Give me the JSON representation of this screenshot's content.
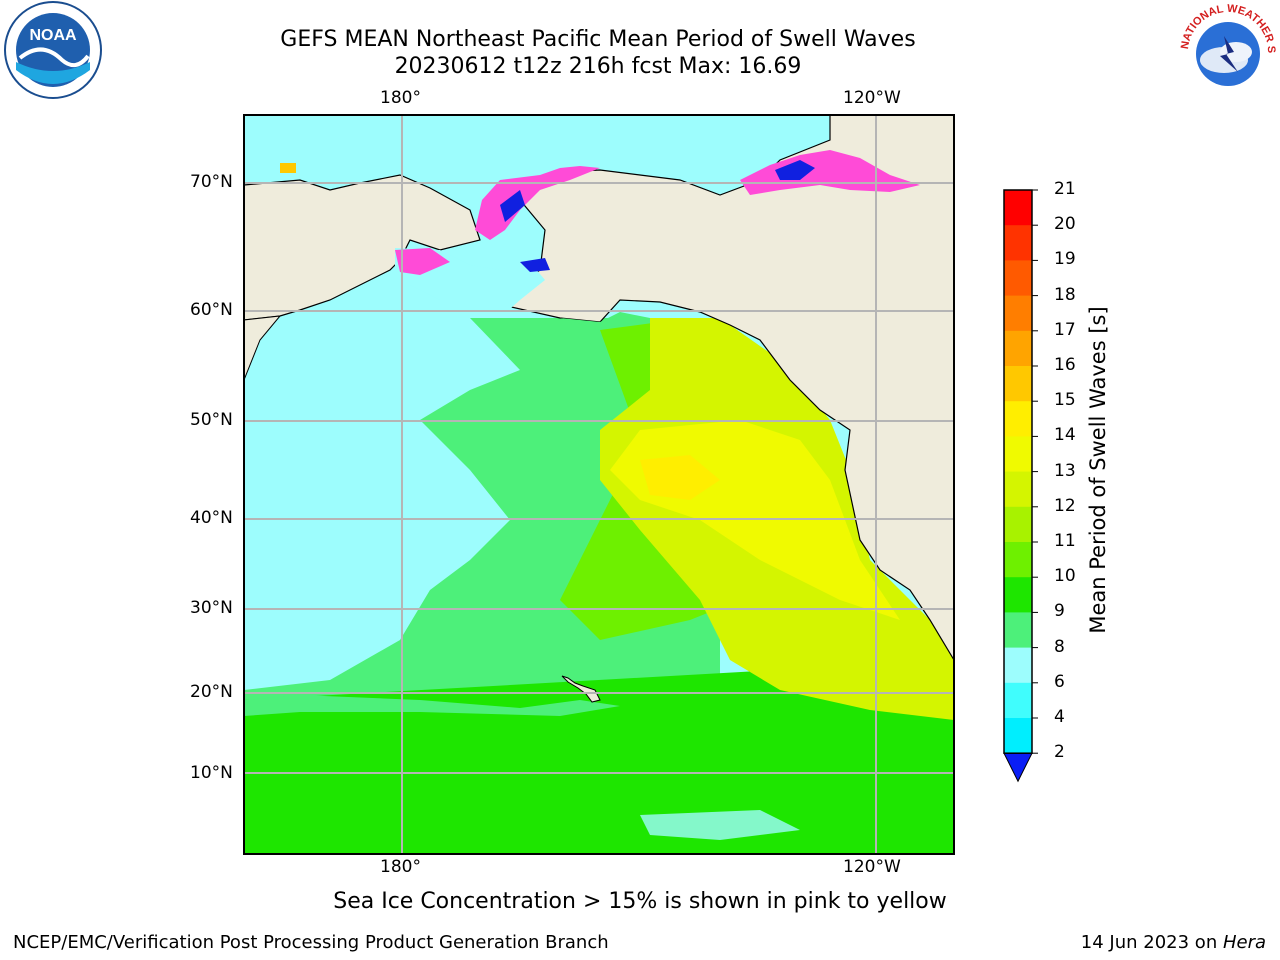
{
  "title": {
    "line1": "GEFS MEAN Northeast Pacific Mean Period of Swell Waves",
    "line2": "20230612 t12z 216h fcst   Max: 16.69"
  },
  "logos": {
    "left": {
      "name": "noaa-logo",
      "text": "NOAA"
    },
    "right": {
      "name": "nws-logo",
      "text": "NATIONAL WEATHER SERVICE"
    }
  },
  "map": {
    "lon_top_labels": [
      "180°",
      "120°W"
    ],
    "lon_bottom_labels": [
      "180°",
      "120°W"
    ],
    "lat_labels": [
      "70°N",
      "60°N",
      "50°N",
      "40°N",
      "30°N",
      "20°N",
      "10°N"
    ],
    "land_color": "#efecdc",
    "grid_color": "#b5b5b5"
  },
  "colorbar": {
    "title": "Mean Period of Swell Waves [s]",
    "levels": [
      "21",
      "20",
      "19",
      "18",
      "17",
      "16",
      "15",
      "14",
      "13",
      "12",
      "11",
      "10",
      "9",
      "8",
      "6",
      "4",
      "2"
    ],
    "colors": [
      "#ff0000",
      "#ff3300",
      "#ff5a00",
      "#ff7e00",
      "#ffa400",
      "#ffc800",
      "#ffee00",
      "#f0fa00",
      "#d4f500",
      "#a8f200",
      "#6ef000",
      "#1ee600",
      "#4df07a",
      "#9dfdfd",
      "#40fdfd",
      "#00eefe",
      "#00a0fe",
      "#0a1ef5"
    ]
  },
  "note": "Sea Ice Concentration > 15% is shown in pink to yellow",
  "footer": {
    "left": "NCEP/EMC/Verification Post Processing Product Generation Branch",
    "right_prefix": "14 Jun 2023 on ",
    "right_machine": "Hera"
  }
}
